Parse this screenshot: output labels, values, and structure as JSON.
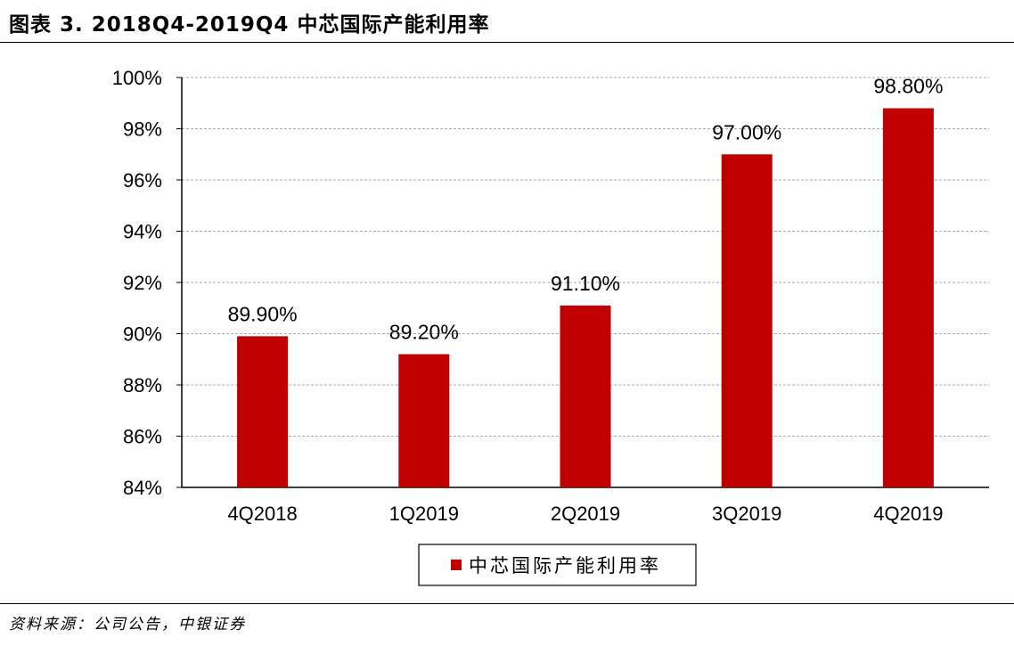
{
  "figure": {
    "title": "图表 3. 2018Q4-2019Q4 中芯国际产能利用率",
    "source": "资料来源：公司公告，中银证券"
  },
  "chart_data": {
    "type": "bar",
    "title": "",
    "xlabel": "",
    "ylabel": "",
    "categories": [
      "4Q2018",
      "1Q2019",
      "2Q2019",
      "3Q2019",
      "4Q2019"
    ],
    "series": [
      {
        "name": "中芯国际产能利用率",
        "values": [
          89.9,
          89.2,
          91.1,
          97.0,
          98.8
        ],
        "data_labels": [
          "89.90%",
          "89.20%",
          "91.10%",
          "97.00%",
          "98.80%"
        ],
        "color": "#c00000"
      }
    ],
    "ylim": [
      84,
      100
    ],
    "yticks": [
      84,
      86,
      88,
      90,
      92,
      94,
      96,
      98,
      100
    ],
    "ytick_labels": [
      "84%",
      "86%",
      "88%",
      "90%",
      "92%",
      "94%",
      "96%",
      "98%",
      "100%"
    ],
    "grid": "horizontal dashed",
    "legend": "bottom-center"
  }
}
